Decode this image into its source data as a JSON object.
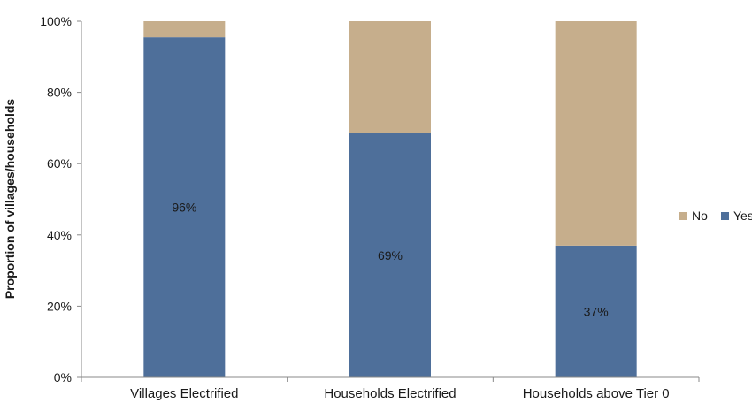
{
  "chart_data": {
    "type": "bar",
    "stacked": true,
    "categories": [
      "Villages Electrified",
      "Households Electrified",
      "Households above Tier 0"
    ],
    "series": [
      {
        "name": "Yes",
        "values": [
          95.5,
          68.5,
          37
        ],
        "color": "#4e6f9a"
      },
      {
        "name": "No",
        "values": [
          4.5,
          31.5,
          63
        ],
        "color": "#c6ae8c"
      }
    ],
    "data_labels": [
      "96%",
      "69%",
      "37%"
    ],
    "ylabel": "Proportion of villages/households",
    "ylim": [
      0,
      100
    ],
    "yticks": [
      "0%",
      "20%",
      "40%",
      "60%",
      "80%",
      "100%"
    ],
    "ytick_values": [
      0,
      20,
      40,
      60,
      80,
      100
    ],
    "grid": false,
    "legend": {
      "placement": "right",
      "order": [
        "No",
        "Yes"
      ]
    }
  }
}
